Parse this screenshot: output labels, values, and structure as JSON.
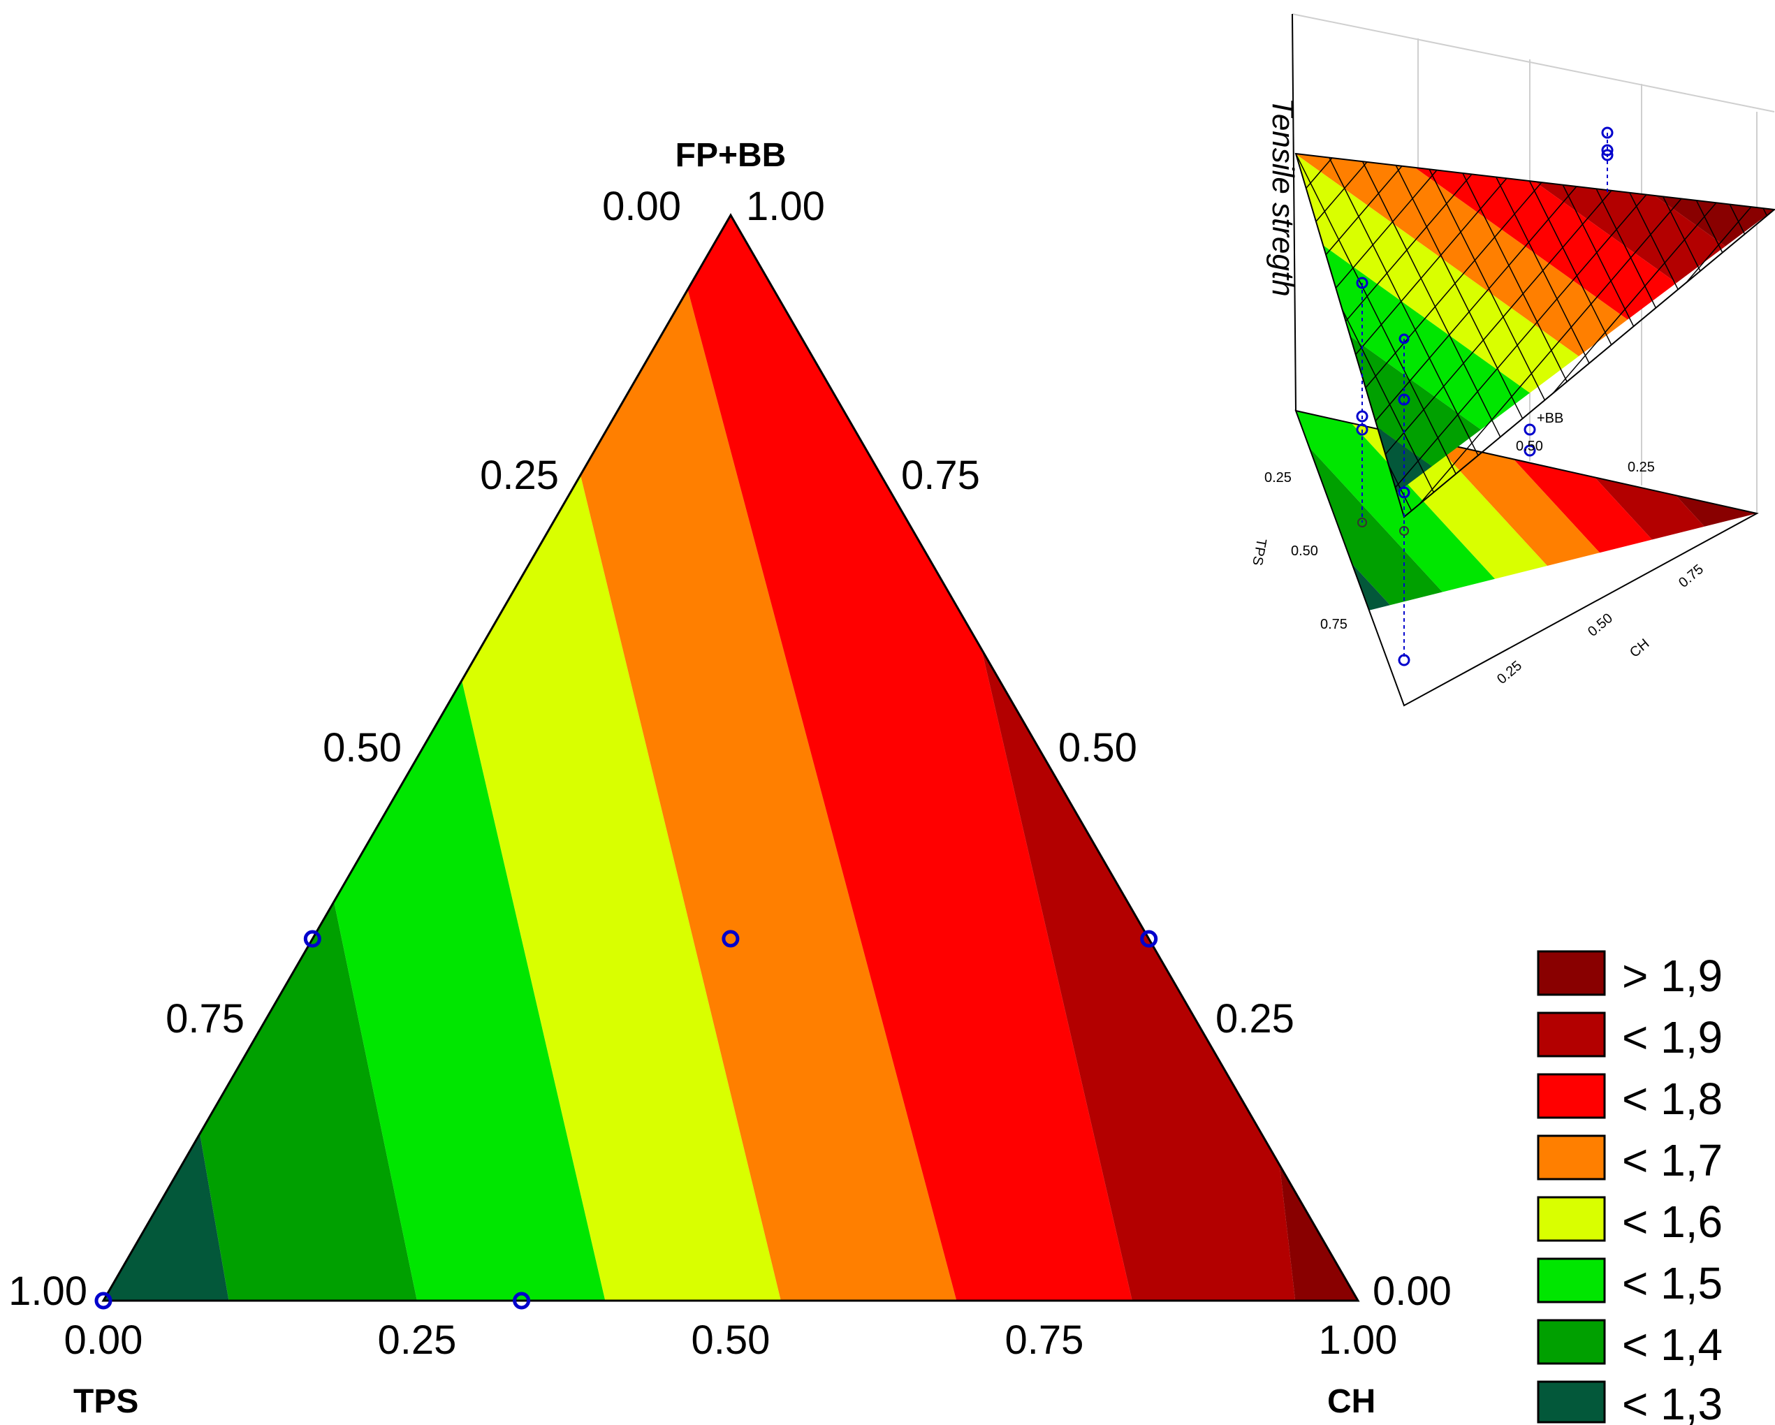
{
  "chart_data": [
    {
      "type": "ternary-contour",
      "vertices": {
        "top": "FP+BB",
        "left": "TPS",
        "right": "CH"
      },
      "ticks": [
        "0.00",
        "0.25",
        "0.50",
        "0.75",
        "1.00"
      ],
      "components_order": [
        "FP+BB",
        "TPS",
        "CH"
      ],
      "design_points": [
        [
          0.0,
          1.0,
          0.0
        ],
        [
          0.0,
          0.6667,
          0.3333
        ],
        [
          0.3333,
          0.6667,
          0.0
        ],
        [
          0.3333,
          0.3333,
          0.3333
        ],
        [
          0.3333,
          0.0,
          0.6667
        ]
      ],
      "contour_levels": [
        1.3,
        1.4,
        1.5,
        1.6,
        1.7,
        1.8,
        1.9
      ],
      "band_colors": [
        "#03583a",
        "#00a000",
        "#00e600",
        "#d9ff00",
        "#ff7f00",
        "#ff0000",
        "#b30000",
        "#890000"
      ],
      "band_boundaries_ch_at_bottom": [
        0.1,
        0.25,
        0.4,
        0.54,
        0.68,
        0.82,
        0.95
      ],
      "band_boundaries_ch_at_top": [
        -0.05,
        0.07,
        0.2,
        0.33,
        0.45,
        0.62,
        0.85
      ]
    },
    {
      "type": "surface-3d",
      "zlabel": "Tensile stregth",
      "axis_labels": {
        "left": "TPS",
        "right": "CH",
        "back": "FP+BB"
      },
      "ticks": [
        "0.25",
        "0.50",
        "0.75"
      ]
    }
  ],
  "legend": {
    "items": [
      {
        "label": "> 1,9",
        "color": "#890000"
      },
      {
        "label": "< 1,9",
        "color": "#b30000"
      },
      {
        "label": "< 1,8",
        "color": "#ff0000"
      },
      {
        "label": "< 1,7",
        "color": "#ff7f00"
      },
      {
        "label": "< 1,6",
        "color": "#d9ff00"
      },
      {
        "label": "< 1,5",
        "color": "#00e600"
      },
      {
        "label": "< 1,4",
        "color": "#00a000"
      },
      {
        "label": "< 1,3",
        "color": "#03583a"
      }
    ]
  },
  "marker_color": "#0000cc"
}
